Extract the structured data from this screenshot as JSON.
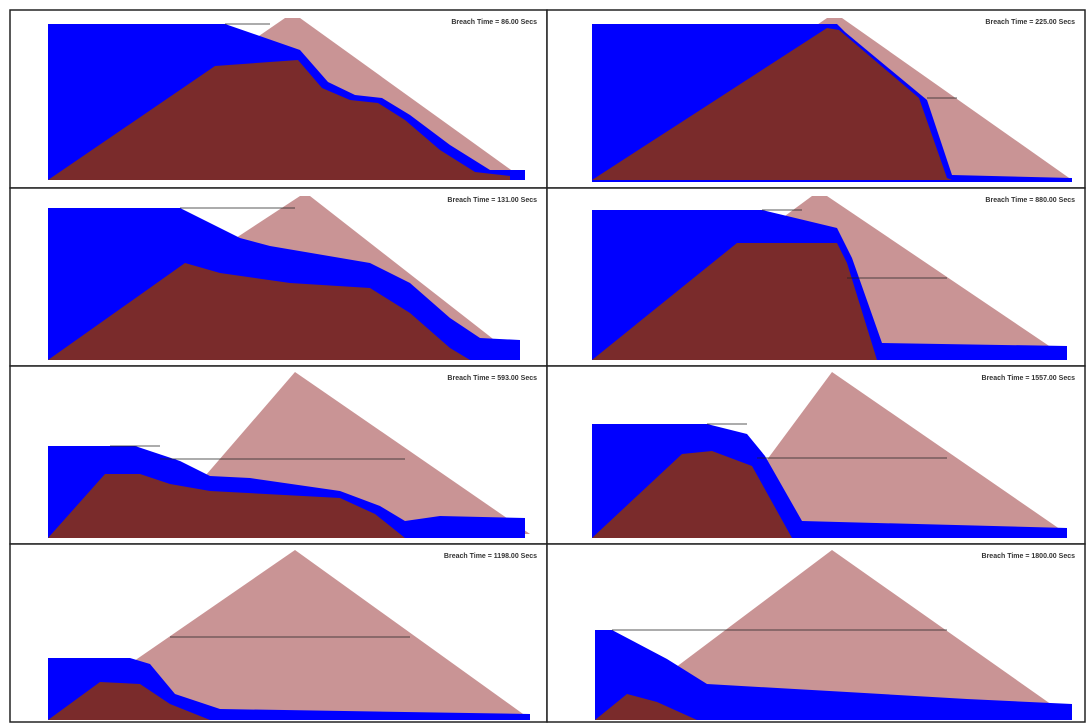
{
  "panels": [
    {
      "title": "Breach Time =  86.00 Secs"
    },
    {
      "title": "Breach Time = 225.00 Secs"
    },
    {
      "title": "Breach Time = 131.00 Secs"
    },
    {
      "title": "Breach Time = 880.00 Secs"
    },
    {
      "title": "Breach Time = 593.00 Secs"
    },
    {
      "title": "Breach Time = 1557.00 Secs"
    },
    {
      "title": "Breach Time = 1198.00 Secs"
    },
    {
      "title": "Breach Time = 1800.00 Secs"
    }
  ]
}
